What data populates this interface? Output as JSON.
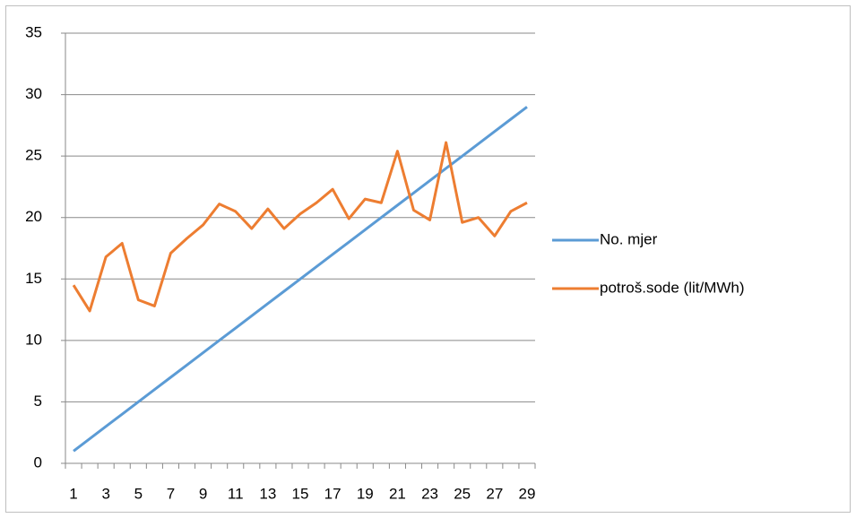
{
  "chart_data": {
    "type": "line",
    "categories": [
      1,
      null,
      3,
      null,
      5,
      null,
      7,
      null,
      9,
      null,
      11,
      null,
      13,
      null,
      15,
      null,
      17,
      null,
      19,
      null,
      21,
      null,
      23,
      null,
      25,
      null,
      27,
      null,
      29
    ],
    "series": [
      {
        "name": "No. mjer",
        "color": "#5b9bd5",
        "values": [
          1,
          2,
          3,
          4,
          5,
          6,
          7,
          8,
          9,
          10,
          11,
          12,
          13,
          14,
          15,
          16,
          17,
          18,
          19,
          20,
          21,
          22,
          23,
          24,
          25,
          26,
          27,
          28,
          29
        ]
      },
      {
        "name": "potroš.sode (lit/MWh)",
        "color": "#ed7d31",
        "values": [
          14.5,
          12.4,
          16.8,
          17.9,
          13.3,
          12.8,
          17.1,
          18.3,
          19.4,
          21.1,
          20.5,
          19.1,
          20.7,
          19.1,
          20.3,
          21.2,
          22.3,
          19.9,
          21.5,
          21.2,
          25.4,
          20.6,
          19.8,
          26.1,
          19.6,
          20.0,
          18.5,
          20.5,
          21.2
        ]
      }
    ],
    "ylim": [
      0,
      35
    ],
    "yticks": [
      0,
      5,
      10,
      15,
      20,
      25,
      30,
      35
    ],
    "grid": true,
    "legend": "right"
  }
}
